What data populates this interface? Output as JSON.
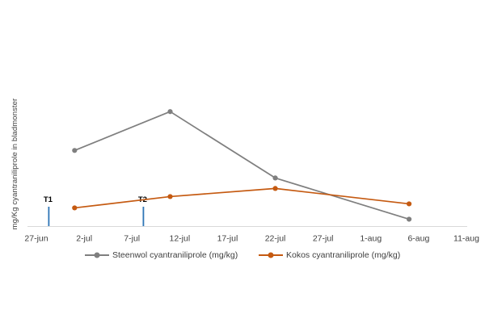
{
  "chart_data": {
    "type": "line",
    "title": "",
    "xlabel": "",
    "ylabel": "mg/Kg cyantraniliprole in bladmonster",
    "grid": false,
    "legend_position": "bottom",
    "axis_color": "#D9D9D9",
    "text_color": "#404040",
    "annotation_text_color": "#000000",
    "annotation_tick_color": "#2E75B6",
    "x_tick_labels": [
      "27-jun",
      "2-jul",
      "7-jul",
      "12-jul",
      "17-jul",
      "22-jul",
      "27-jul",
      "1-aug",
      "6-aug",
      "11-aug"
    ],
    "x_tick_days": [
      0,
      5,
      10,
      15,
      20,
      25,
      30,
      35,
      40,
      45
    ],
    "x_range_days": [
      0,
      45
    ],
    "ylim": [
      0,
      2.5
    ],
    "y_axis_ticks_visible": false,
    "series": [
      {
        "name": "Steenwol cyantraniliprole (mg/kg)",
        "color": "#7F7F7F",
        "x_dates": [
          "1-jul",
          "11-jul",
          "22-jul",
          "5-aug"
        ],
        "x_days": [
          4,
          14,
          25,
          39
        ],
        "values": [
          0.94,
          1.42,
          0.6,
          0.09
        ]
      },
      {
        "name": "Kokos cyantraniliprole (mg/kg)",
        "color": "#C55A11",
        "x_dates": [
          "1-jul",
          "11-jul",
          "22-jul",
          "5-aug"
        ],
        "x_days": [
          4,
          14,
          25,
          39
        ],
        "values": [
          0.23,
          0.37,
          0.47,
          0.28
        ]
      }
    ],
    "annotations": [
      {
        "label": "T1",
        "date": "28-jun",
        "day": 1.3
      },
      {
        "label": "T2",
        "date": "8-jul",
        "day": 11.2
      }
    ]
  }
}
